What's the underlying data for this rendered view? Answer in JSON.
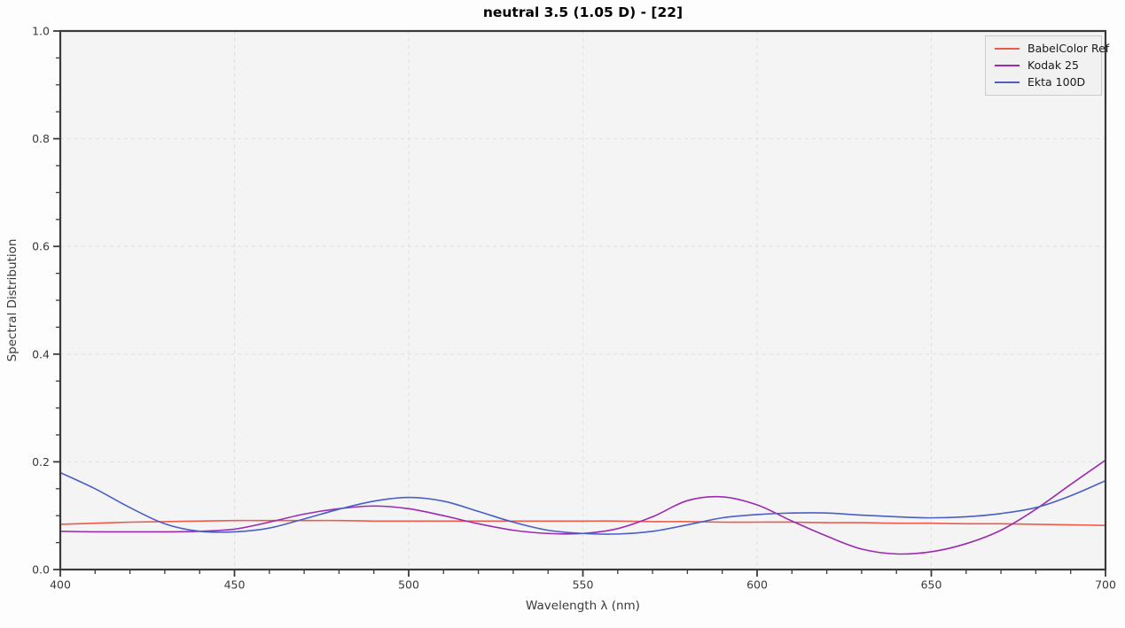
{
  "figure": {
    "background": "#fdfdfd",
    "axes_background": "#f4f4f4",
    "grid_color": "#e0e0e0",
    "spine_color": "#3a3a3a",
    "tick_color": "#3a3a3a",
    "tick_label_color": "#3a3a3a"
  },
  "chart_data": {
    "type": "line",
    "title": "neutral 3.5 (1.05 D) - [22]",
    "xlabel": "Wavelength λ (nm)",
    "ylabel": "Spectral Distribution",
    "xlim": [
      400,
      700
    ],
    "ylim": [
      0.0,
      1.0
    ],
    "x_ticks": [
      400,
      450,
      500,
      550,
      600,
      650,
      700
    ],
    "y_ticks": [
      0.0,
      0.2,
      0.4,
      0.6,
      0.8,
      1.0
    ],
    "x_minor_step": 10,
    "y_minor_step": 0.05,
    "grid": true,
    "legend_position": "upper right",
    "x": [
      400,
      410,
      420,
      430,
      440,
      450,
      460,
      470,
      480,
      490,
      500,
      510,
      520,
      530,
      540,
      550,
      560,
      570,
      580,
      590,
      600,
      610,
      620,
      630,
      640,
      650,
      660,
      670,
      680,
      690,
      700
    ],
    "series": [
      {
        "name": "BabelColor Ref",
        "color": "#ed5a4c",
        "values": [
          0.084,
          0.086,
          0.088,
          0.089,
          0.09,
          0.091,
          0.091,
          0.091,
          0.091,
          0.09,
          0.09,
          0.09,
          0.09,
          0.09,
          0.09,
          0.09,
          0.09,
          0.089,
          0.089,
          0.088,
          0.088,
          0.088,
          0.087,
          0.087,
          0.086,
          0.086,
          0.085,
          0.085,
          0.084,
          0.083,
          0.082
        ]
      },
      {
        "name": "Kodak 25",
        "color": "#9c2bb0",
        "values": [
          0.071,
          0.07,
          0.07,
          0.07,
          0.071,
          0.075,
          0.088,
          0.103,
          0.113,
          0.118,
          0.113,
          0.1,
          0.085,
          0.073,
          0.067,
          0.067,
          0.076,
          0.098,
          0.128,
          0.135,
          0.12,
          0.09,
          0.062,
          0.038,
          0.029,
          0.033,
          0.048,
          0.073,
          0.112,
          0.158,
          0.203
        ]
      },
      {
        "name": "Ekta 100D",
        "color": "#4a5ec4",
        "values": [
          0.18,
          0.15,
          0.115,
          0.085,
          0.071,
          0.07,
          0.077,
          0.094,
          0.112,
          0.127,
          0.134,
          0.127,
          0.108,
          0.088,
          0.073,
          0.067,
          0.066,
          0.071,
          0.083,
          0.096,
          0.102,
          0.105,
          0.105,
          0.101,
          0.098,
          0.096,
          0.098,
          0.104,
          0.115,
          0.137,
          0.165
        ]
      }
    ]
  }
}
